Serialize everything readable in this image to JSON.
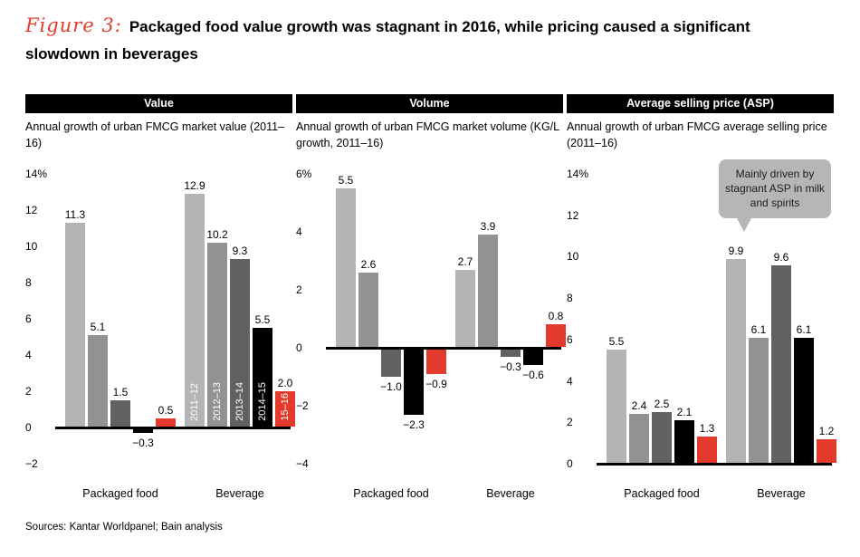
{
  "title": {
    "figure_label": "Figure 3:",
    "text": "Packaged food value growth was stagnant in 2016, while pricing caused a significant slowdown in beverages"
  },
  "sources": "Sources: Kantar Worldpanel; Bain analysis",
  "callout": {
    "text": "Mainly driven by stagnant ASP in milk and spirits"
  },
  "colors": {
    "accent_red": "#e23b2e",
    "header_bg": "#000000",
    "callout_bg": "#b4b6b8",
    "bars": [
      "#b2b4b6",
      "#909294",
      "#5f6163",
      "#000000",
      "#e23b2e"
    ]
  },
  "chart_data": [
    {
      "type": "bar",
      "panel_header": "Value",
      "subtitle": "Annual growth of urban FMCG market value (2011–16)",
      "categories": [
        "Packaged food",
        "Beverage"
      ],
      "series": [
        {
          "name": "2011–12",
          "values": [
            11.3,
            12.9
          ]
        },
        {
          "name": "2012–13",
          "values": [
            5.1,
            10.2
          ]
        },
        {
          "name": "2013–14",
          "values": [
            1.5,
            9.3
          ]
        },
        {
          "name": "2014–15",
          "values": [
            -0.3,
            5.5
          ]
        },
        {
          "name": "15–16",
          "values": [
            0.5,
            2.0
          ]
        }
      ],
      "ylim": [
        -2,
        14
      ],
      "yticks": [
        14,
        12,
        10,
        8,
        6,
        4,
        2,
        0,
        -2
      ],
      "ytick_labels": [
        "14%",
        "12",
        "10",
        "8",
        "6",
        "4",
        "2",
        "0",
        "−2"
      ],
      "legend_position": "inside-bars-beverage",
      "grid": false,
      "inner_labels": true
    },
    {
      "type": "bar",
      "panel_header": "Volume",
      "subtitle": "Annual growth of urban FMCG market volume (KG/L growth, 2011–16)",
      "categories": [
        "Packaged food",
        "Beverage"
      ],
      "series": [
        {
          "name": "2011–12",
          "values": [
            5.5,
            2.7
          ]
        },
        {
          "name": "2012–13",
          "values": [
            2.6,
            3.9
          ]
        },
        {
          "name": "2013–14",
          "values": [
            -1.0,
            -0.3
          ]
        },
        {
          "name": "2014–15",
          "values": [
            -2.3,
            -0.6
          ]
        },
        {
          "name": "15–16",
          "values": [
            -0.9,
            0.8
          ]
        }
      ],
      "ylim": [
        -4,
        6
      ],
      "yticks": [
        6,
        4,
        2,
        0,
        -2,
        -4
      ],
      "ytick_labels": [
        "6%",
        "4",
        "2",
        "0",
        "−2",
        "−4"
      ],
      "grid": false,
      "inner_labels": false
    },
    {
      "type": "bar",
      "panel_header": "Average selling price (ASP)",
      "subtitle": "Annual growth of urban FMCG average selling price (2011–16)",
      "categories": [
        "Packaged food",
        "Beverage"
      ],
      "series": [
        {
          "name": "2011–12",
          "values": [
            5.5,
            9.9
          ]
        },
        {
          "name": "2012–13",
          "values": [
            2.4,
            6.1
          ]
        },
        {
          "name": "2013–14",
          "values": [
            2.5,
            9.6
          ]
        },
        {
          "name": "2014–15",
          "values": [
            2.1,
            6.1
          ]
        },
        {
          "name": "15–16",
          "values": [
            1.3,
            1.2
          ]
        }
      ],
      "ylim": [
        0,
        14
      ],
      "yticks": [
        14,
        12,
        10,
        8,
        6,
        4,
        2,
        0
      ],
      "ytick_labels": [
        "14%",
        "12",
        "10",
        "8",
        "6",
        "4",
        "2",
        "0"
      ],
      "grid": false,
      "inner_labels": false
    }
  ]
}
